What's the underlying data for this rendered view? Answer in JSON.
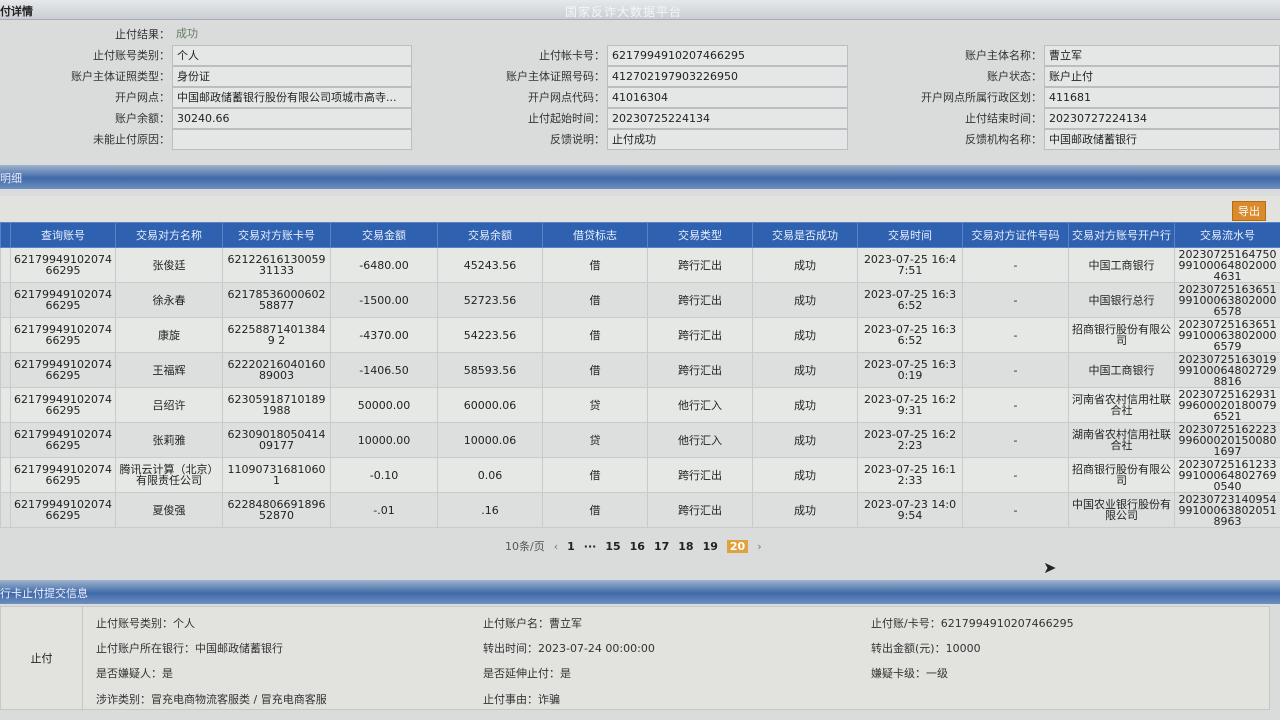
{
  "header": {
    "title": "付详情",
    "watermark": "国家反诈大数据平台"
  },
  "detail": {
    "result_label": "止付结果：",
    "result_value": "成功",
    "rows": [
      [
        {
          "l": "止付账号类别：",
          "v": "个人"
        },
        {
          "l": "止付帐卡号：",
          "v": "6217994910207466295"
        },
        {
          "l": "账户主体名称：",
          "v": "曹立军"
        }
      ],
      [
        {
          "l": "账户主体证照类型：",
          "v": "身份证"
        },
        {
          "l": "账户主体证照号码：",
          "v": "412702197903226950"
        },
        {
          "l": "账户状态：",
          "v": "账户止付"
        }
      ],
      [
        {
          "l": "开户网点：",
          "v": "中国邮政储蓄银行股份有限公司项城市高寺..."
        },
        {
          "l": "开户网点代码：",
          "v": "41016304"
        },
        {
          "l": "开户网点所属行政区划：",
          "v": "411681"
        }
      ],
      [
        {
          "l": "账户余额：",
          "v": "30240.66"
        },
        {
          "l": "止付起始时间：",
          "v": "20230725224134"
        },
        {
          "l": "止付结束时间：",
          "v": "20230727224134"
        }
      ],
      [
        {
          "l": "未能止付原因：",
          "v": ""
        },
        {
          "l": "反馈说明：",
          "v": "止付成功"
        },
        {
          "l": "反馈机构名称：",
          "v": "中国邮政储蓄银行"
        }
      ]
    ]
  },
  "detail_section": {
    "title": "明细",
    "export_label": "导出"
  },
  "table": {
    "columns": [
      "查询账号",
      "交易对方名称",
      "交易对方账卡号",
      "交易金额",
      "交易余额",
      "借贷标志",
      "交易类型",
      "交易是否成功",
      "交易时间",
      "交易对方证件号码",
      "交易对方账号开户行",
      "交易流水号"
    ],
    "rows": [
      [
        "6217994910207466295",
        "张俊廷",
        "6212261613005931133",
        "-6480.00",
        "45243.56",
        "借",
        "跨行汇出",
        "成功",
        "2023-07-25 16:47:51",
        "-",
        "中国工商银行",
        "20230725164750991000648020004631"
      ],
      [
        "6217994910207466295",
        "徐永春",
        "6217853600060258877",
        "-1500.00",
        "52723.56",
        "借",
        "跨行汇出",
        "成功",
        "2023-07-25 16:36:52",
        "-",
        "中国银行总行",
        "20230725163651991000638020006578"
      ],
      [
        "6217994910207466295",
        "康旋",
        "622588714013849 2",
        "-4370.00",
        "54223.56",
        "借",
        "跨行汇出",
        "成功",
        "2023-07-25 16:36:52",
        "-",
        "招商银行股份有限公司",
        "20230725163651991000638020006579"
      ],
      [
        "6217994910207466295",
        "王福辉",
        "6222021604016089003",
        "-1406.50",
        "58593.56",
        "借",
        "跨行汇出",
        "成功",
        "2023-07-25 16:30:19",
        "-",
        "中国工商银行",
        "20230725163019991000648027298816"
      ],
      [
        "6217994910207466295",
        "吕绍许",
        "623059187101891988",
        "50000.00",
        "60000.06",
        "贷",
        "他行汇入",
        "成功",
        "2023-07-25 16:29:31",
        "-",
        "河南省农村信用社联合社",
        "20230725162931996000201800796521"
      ],
      [
        "6217994910207466295",
        "张莉雅",
        "6230901805041409177",
        "10000.00",
        "10000.06",
        "贷",
        "他行汇入",
        "成功",
        "2023-07-25 16:22:23",
        "-",
        "湖南省农村信用社联合社",
        "20230725162223996000201500801697"
      ],
      [
        "6217994910207466295",
        "腾讯云计算（北京）有限责任公司",
        "110907316810601",
        "-0.10",
        "0.06",
        "借",
        "跨行汇出",
        "成功",
        "2023-07-25 16:12:33",
        "-",
        "招商银行股份有限公司",
        "20230725161233991000648027690540"
      ],
      [
        "6217994910207466295",
        "夏俊强",
        "6228480669189652870",
        "-.01",
        ".16",
        "借",
        "跨行汇出",
        "成功",
        "2023-07-23 14:09:54",
        "-",
        "中国农业银行股份有限公司",
        "20230723140954991000638020518963"
      ]
    ]
  },
  "pager": {
    "page_size": "10条/页",
    "prev": "‹",
    "pages": [
      "1",
      "···",
      "15",
      "16",
      "17",
      "18",
      "19",
      "20"
    ],
    "current": "20",
    "next": "›"
  },
  "submit_section": {
    "title": "行卡止付提交信息",
    "side_label": "止付",
    "items": [
      "止付账号类别：个人",
      "止付账户所在银行：中国邮政储蓄银行",
      "是否嫌疑人：是",
      "涉诈类别：冒充电商物流客服类 / 冒充电商客服",
      "止付账户名：曹立军",
      "转出时间：2023-07-24 00:00:00",
      "是否延伸止付：是",
      "止付事由：诈骗",
      "止付账/卡号：6217994910207466295",
      "转出金额(元)：10000",
      "嫌疑卡级：一级"
    ]
  }
}
